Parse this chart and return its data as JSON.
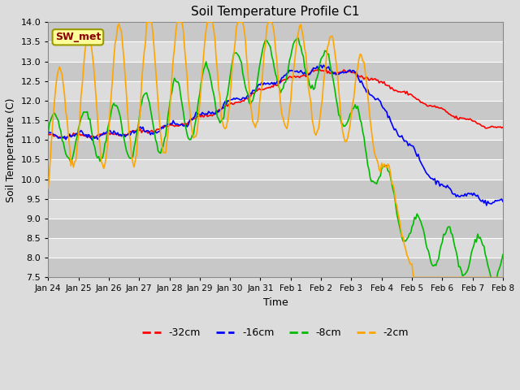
{
  "title": "Soil Temperature Profile C1",
  "xlabel": "Time",
  "ylabel": "Soil Temperature (C)",
  "ylim": [
    7.5,
    14.0
  ],
  "yticks": [
    7.5,
    8.0,
    8.5,
    9.0,
    9.5,
    10.0,
    10.5,
    11.0,
    11.5,
    12.0,
    12.5,
    13.0,
    13.5,
    14.0
  ],
  "xtick_labels": [
    "Jan 24",
    "Jan 25",
    "Jan 26",
    "Jan 27",
    "Jan 28",
    "Jan 29",
    "Jan 30",
    "Jan 31",
    "Feb 1",
    "Feb 2",
    "Feb 3",
    "Feb 4",
    "Feb 5",
    "Feb 6",
    "Feb 7",
    "Feb 8"
  ],
  "annotation_label": "SW_met",
  "annotation_color": "#8B0000",
  "annotation_bg": "#FFFF99",
  "annotation_border": "#999900",
  "series_colors": [
    "#FF0000",
    "#0000FF",
    "#00BB00",
    "#FFA500"
  ],
  "series_labels": [
    "-32cm",
    "-16cm",
    "-8cm",
    "-2cm"
  ],
  "linewidth": 1.2,
  "background_color": "#DCDCDC",
  "band_color_dark": "#C8C8C8",
  "band_color_light": "#DCDCDC",
  "grid_color": "#FFFFFF"
}
